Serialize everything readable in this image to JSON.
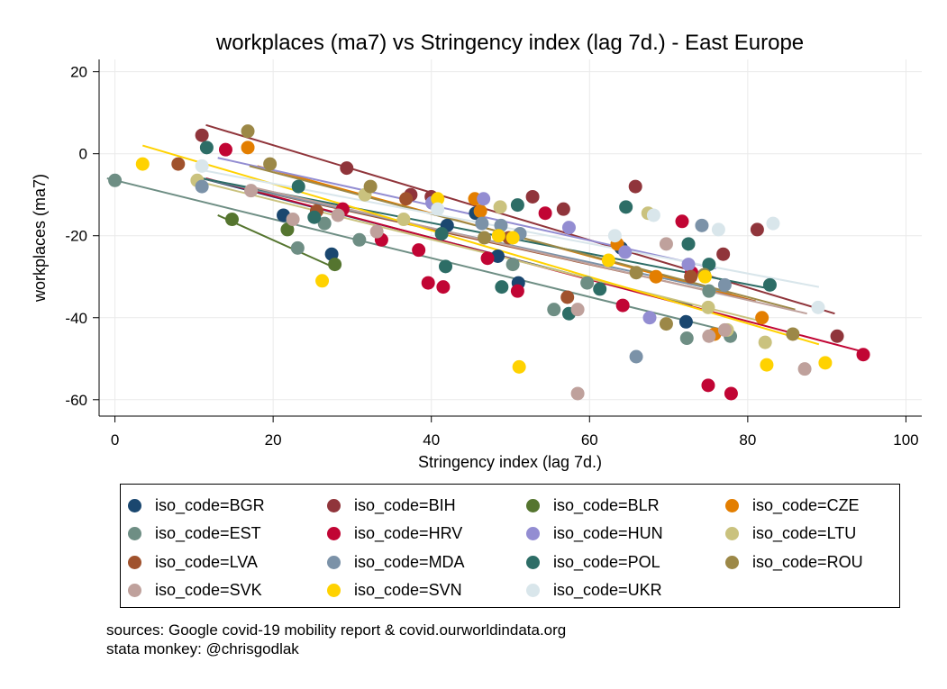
{
  "chart_data": {
    "type": "scatter",
    "title": "workplaces (ma7) vs Stringency index (lag 7d.) - East Europe",
    "xlabel": "Stringency index (lag 7d.)",
    "ylabel": "workplaces (ma7)",
    "xlim": [
      -2,
      102
    ],
    "ylim": [
      -64,
      23
    ],
    "xticks": [
      "0",
      "20",
      "40",
      "60",
      "80",
      "100"
    ],
    "yticks": [
      "20",
      "0",
      "-20",
      "-40",
      "-60"
    ],
    "grid": true,
    "legend_position": "bottom",
    "series": [
      {
        "name": "iso_code=BGR",
        "color": "#1a476f",
        "points": [
          [
            21.3,
            -15
          ],
          [
            27.4,
            -24.5
          ],
          [
            42,
            -17.5
          ],
          [
            45.6,
            -14.5
          ],
          [
            48.4,
            -25
          ],
          [
            51,
            -31.5
          ],
          [
            64,
            -23
          ],
          [
            72.2,
            -41
          ]
        ],
        "fit": [
          [
            11,
            -6
          ],
          [
            73,
            -37
          ]
        ]
      },
      {
        "name": "iso_code=BIH",
        "color": "#90353b",
        "points": [
          [
            11,
            4.5
          ],
          [
            29.3,
            -3.5
          ],
          [
            37.4,
            -10
          ],
          [
            40,
            -10.5
          ],
          [
            52.8,
            -10.5
          ],
          [
            56.7,
            -13.5
          ],
          [
            65.8,
            -8
          ],
          [
            76.9,
            -24.5
          ],
          [
            81.2,
            -18.5
          ],
          [
            91.3,
            -44.5
          ]
        ],
        "fit": [
          [
            11.5,
            7
          ],
          [
            91,
            -39
          ]
        ]
      },
      {
        "name": "iso_code=BLR",
        "color": "#55752f",
        "points": [
          [
            14.8,
            -16
          ],
          [
            21.8,
            -18.5
          ],
          [
            27.8,
            -27
          ]
        ],
        "fit": [
          [
            13,
            -15
          ],
          [
            28,
            -28
          ]
        ]
      },
      {
        "name": "iso_code=CZE",
        "color": "#e37e00",
        "points": [
          [
            16.8,
            1.5
          ],
          [
            45.5,
            -11
          ],
          [
            46.2,
            -14
          ],
          [
            63.5,
            -22
          ],
          [
            68.4,
            -30
          ],
          [
            75.8,
            -44
          ],
          [
            81.8,
            -40
          ]
        ],
        "fit": [
          [
            18,
            -3
          ],
          [
            81,
            -36
          ]
        ]
      },
      {
        "name": "iso_code=EST",
        "color": "#6e8e84",
        "points": [
          [
            0,
            -6.5
          ],
          [
            23.1,
            -23
          ],
          [
            26.5,
            -17
          ],
          [
            30.9,
            -21
          ],
          [
            50.3,
            -27
          ],
          [
            55.5,
            -38
          ],
          [
            59.7,
            -31.5
          ],
          [
            72.3,
            -45
          ],
          [
            75.1,
            -33.5
          ],
          [
            77.8,
            -44.5
          ]
        ],
        "fit": [
          [
            -1,
            -6
          ],
          [
            77,
            -43
          ]
        ]
      },
      {
        "name": "iso_code=HRV",
        "color": "#c10534",
        "points": [
          [
            14,
            1
          ],
          [
            28.8,
            -13.5
          ],
          [
            33.7,
            -21
          ],
          [
            38.4,
            -23.5
          ],
          [
            39.6,
            -31.5
          ],
          [
            41.5,
            -32.5
          ],
          [
            47.1,
            -25.5
          ],
          [
            50.9,
            -33.5
          ],
          [
            54.4,
            -14.5
          ],
          [
            64.2,
            -37
          ],
          [
            71.7,
            -16.5
          ],
          [
            72.9,
            -29
          ],
          [
            75,
            -56.5
          ],
          [
            77.9,
            -58.5
          ],
          [
            94.6,
            -49
          ]
        ],
        "fit": [
          [
            11.5,
            -6
          ],
          [
            94,
            -48
          ]
        ]
      },
      {
        "name": "iso_code=HUN",
        "color": "#938dd2",
        "points": [
          [
            40.1,
            -12
          ],
          [
            46.6,
            -11
          ],
          [
            57.4,
            -18
          ],
          [
            64.5,
            -24
          ],
          [
            67.6,
            -40
          ],
          [
            72.5,
            -27
          ]
        ],
        "fit": [
          [
            13,
            -1
          ],
          [
            76,
            -28
          ]
        ]
      },
      {
        "name": "iso_code=LTU",
        "color": "#cac27e",
        "points": [
          [
            10.4,
            -6.5
          ],
          [
            31.6,
            -10
          ],
          [
            36.5,
            -16
          ],
          [
            48.7,
            -13
          ],
          [
            67.4,
            -14.5
          ],
          [
            75,
            -37.5
          ],
          [
            77.4,
            -43
          ],
          [
            82.2,
            -46
          ]
        ],
        "fit": [
          [
            11,
            -7
          ],
          [
            82,
            -41
          ]
        ]
      },
      {
        "name": "iso_code=LVA",
        "color": "#a0522d",
        "points": [
          [
            8,
            -2.5
          ],
          [
            25.5,
            -14
          ],
          [
            36.8,
            -11
          ],
          [
            49.8,
            -20.5
          ],
          [
            57.2,
            -35
          ],
          [
            72.8,
            -30
          ]
        ],
        "fit": [
          [
            11,
            -6
          ],
          [
            81,
            -36
          ]
        ]
      },
      {
        "name": "iso_code=MDA",
        "color": "#7b92a8",
        "points": [
          [
            11,
            -8
          ],
          [
            46.4,
            -17
          ],
          [
            48.8,
            -17.5
          ],
          [
            51.2,
            -19.5
          ],
          [
            65.9,
            -49.5
          ],
          [
            74.2,
            -17.5
          ],
          [
            77.1,
            -32
          ]
        ],
        "fit": [
          [
            11,
            -6
          ],
          [
            78,
            -34
          ]
        ]
      },
      {
        "name": "iso_code=POL",
        "color": "#2d6d66",
        "points": [
          [
            11.6,
            1.5
          ],
          [
            23.2,
            -8
          ],
          [
            25.2,
            -15.5
          ],
          [
            41.3,
            -19.5
          ],
          [
            41.8,
            -27.5
          ],
          [
            48.9,
            -32.5
          ],
          [
            50.9,
            -12.5
          ],
          [
            57.4,
            -39
          ],
          [
            61.3,
            -33
          ],
          [
            64.6,
            -13
          ],
          [
            72.5,
            -22
          ],
          [
            75.1,
            -27
          ],
          [
            82.8,
            -32
          ]
        ],
        "fit": [
          [
            11,
            -6
          ],
          [
            83,
            -33
          ]
        ]
      },
      {
        "name": "iso_code=ROU",
        "color": "#9c8847",
        "points": [
          [
            16.8,
            5.5
          ],
          [
            19.6,
            -2.5
          ],
          [
            32.3,
            -8
          ],
          [
            46.7,
            -20.5
          ],
          [
            65.9,
            -29
          ],
          [
            69.7,
            -41.5
          ],
          [
            74.5,
            -29.5
          ],
          [
            85.7,
            -44
          ]
        ],
        "fit": [
          [
            17,
            -3
          ],
          [
            86,
            -38
          ]
        ]
      },
      {
        "name": "iso_code=SVK",
        "color": "#bfa19c",
        "points": [
          [
            17.2,
            -9
          ],
          [
            22.5,
            -16
          ],
          [
            28.2,
            -15
          ],
          [
            33.1,
            -19
          ],
          [
            58.5,
            -38
          ],
          [
            58.5,
            -58.5
          ],
          [
            69.7,
            -22
          ],
          [
            75.1,
            -44.5
          ],
          [
            77.1,
            -43
          ],
          [
            87.2,
            -52.5
          ]
        ],
        "fit": [
          [
            17,
            -8
          ],
          [
            87.5,
            -39
          ]
        ]
      },
      {
        "name": "iso_code=SVN",
        "color": "#ffd200",
        "points": [
          [
            3.5,
            -2.5
          ],
          [
            26.2,
            -31
          ],
          [
            40.8,
            -11
          ],
          [
            48.5,
            -20
          ],
          [
            50.3,
            -20.5
          ],
          [
            51.1,
            -52
          ],
          [
            62.4,
            -26
          ],
          [
            74.6,
            -30
          ],
          [
            82.4,
            -51.5
          ],
          [
            89.8,
            -51
          ]
        ],
        "fit": [
          [
            3.5,
            2
          ],
          [
            89,
            -46.5
          ]
        ]
      },
      {
        "name": "iso_code=UKR",
        "color": "#d9e6eb",
        "points": [
          [
            11,
            -3
          ],
          [
            40.8,
            -13.5
          ],
          [
            63.2,
            -20
          ],
          [
            68.1,
            -15
          ],
          [
            76.3,
            -18.5
          ],
          [
            83.2,
            -17
          ],
          [
            88.9,
            -37.5
          ]
        ],
        "fit": [
          [
            11,
            -4
          ],
          [
            89,
            -32.5
          ]
        ]
      }
    ]
  },
  "sources": [
    "sources: Google covid-19 mobility report & covid.ourworldindata.org",
    "stata monkey: @chrisgodlak"
  ]
}
